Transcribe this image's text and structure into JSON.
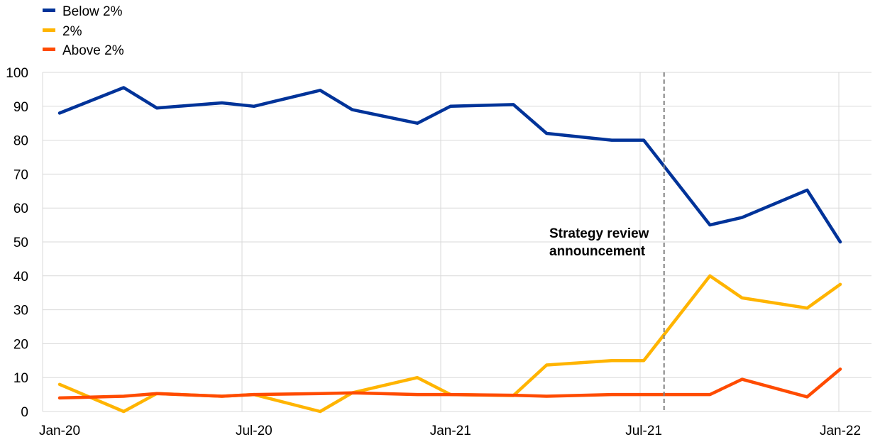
{
  "chart_data": {
    "type": "line",
    "x": [
      "2020-01",
      "2020-03",
      "2020-04",
      "2020-06",
      "2020-07",
      "2020-09",
      "2020-10",
      "2020-12",
      "2021-01",
      "2021-03",
      "2021-04",
      "2021-06",
      "2021-07",
      "2021-09",
      "2021-10",
      "2021-12",
      "2022-01"
    ],
    "series": [
      {
        "name": "Below 2%",
        "color": "#003399",
        "values": [
          88,
          95.5,
          89.5,
          91,
          90,
          94.7,
          89,
          85,
          90,
          90.5,
          82,
          80,
          80,
          55,
          57.2,
          65.3,
          50
        ]
      },
      {
        "name": "2%",
        "color": "#FFB400",
        "values": [
          8,
          0,
          5.3,
          4.5,
          5,
          0,
          5.5,
          10,
          5,
          4.7,
          13.7,
          15,
          15,
          40,
          33.5,
          30.5,
          37.5
        ]
      },
      {
        "name": "Above 2%",
        "color": "#FF4B00",
        "values": [
          4,
          4.5,
          5.3,
          4.5,
          5,
          5.3,
          5.5,
          5,
          5,
          4.8,
          4.5,
          5,
          5,
          5,
          9.5,
          4.3,
          12.5
        ]
      }
    ],
    "x_ticks": [
      "Jan-20",
      "Jul-20",
      "Jan-21",
      "Jul-21",
      "Jan-22"
    ],
    "y_ticks": [
      0,
      10,
      20,
      30,
      40,
      50,
      60,
      70,
      80,
      90,
      100
    ],
    "ylim": [
      0,
      100
    ],
    "grid": true,
    "legend": "top-left",
    "annotation": {
      "x": "2021-07-20",
      "line1": "Strategy review",
      "line2": "announcement"
    }
  }
}
